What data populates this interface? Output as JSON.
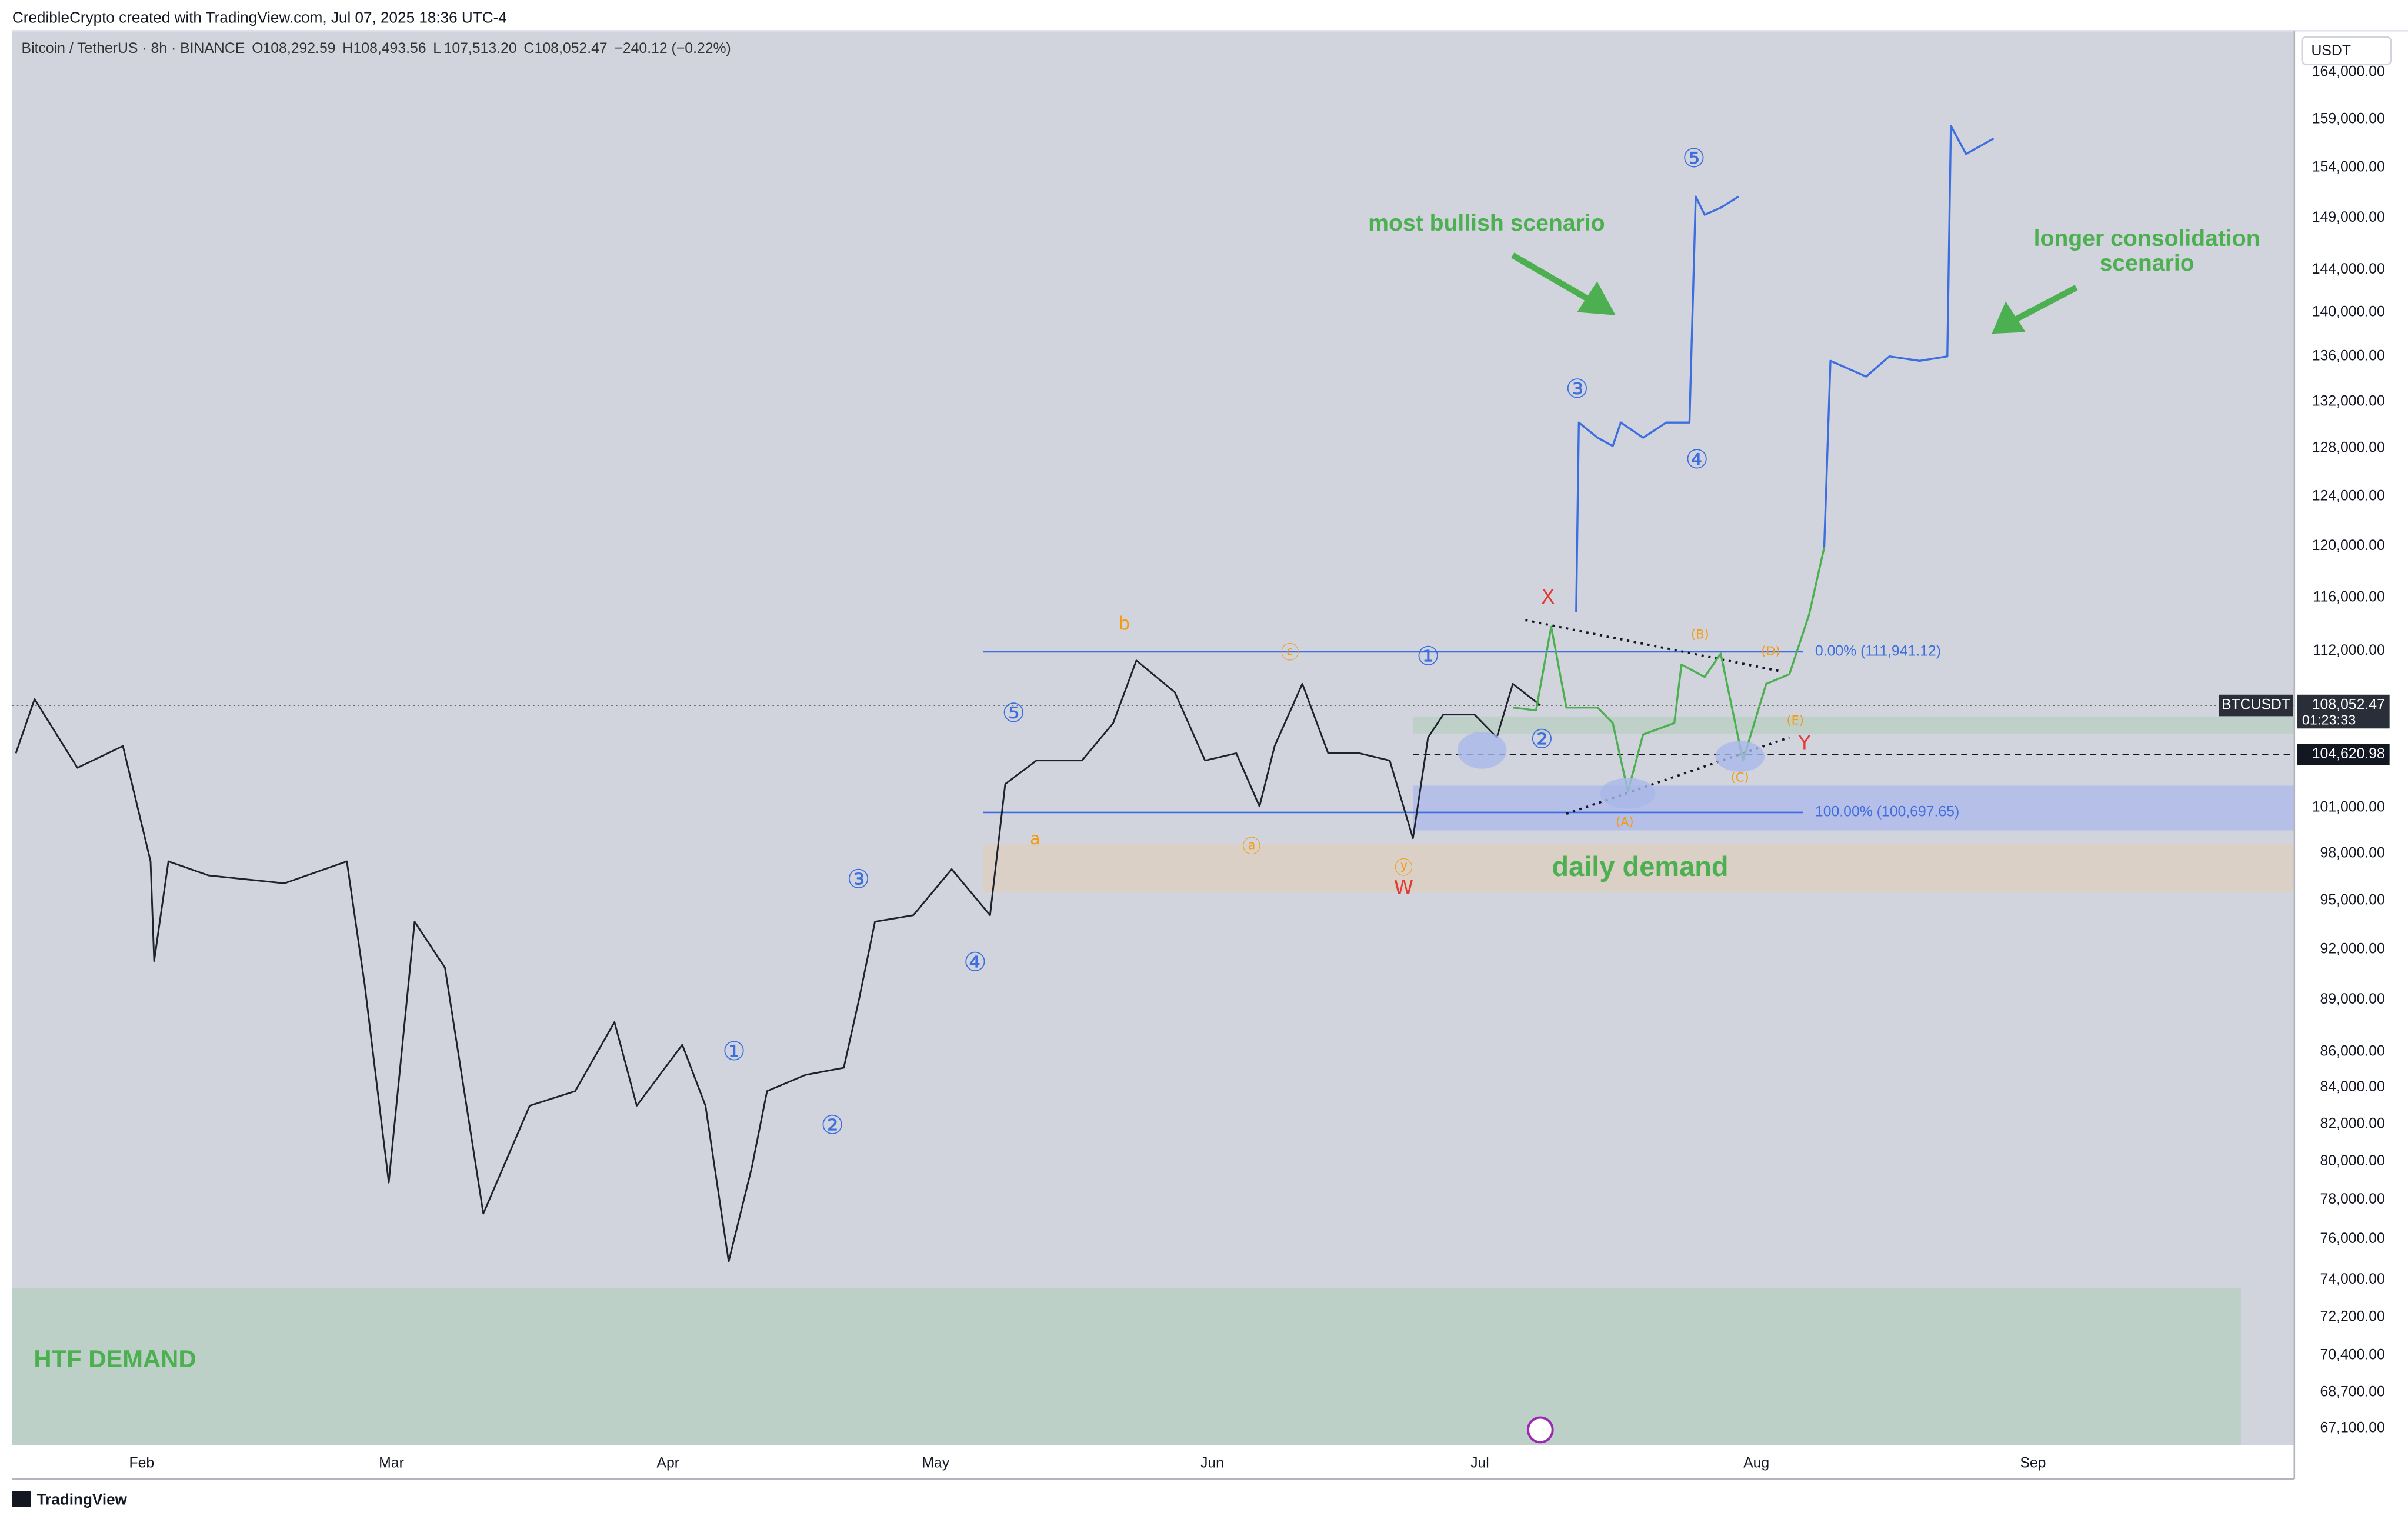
{
  "header": "CredibleCrypto created with TradingView.com, Jul 07, 2025 18:36 UTC-4",
  "footer": "TradingView",
  "chart_data": {
    "type": "line",
    "title": "Bitcoin / TetherUS · 8h · BINANCE",
    "ohlc": [
      {
        "label": "O",
        "value": "108,292.59"
      },
      {
        "label": "H",
        "value": "108,493.56"
      },
      {
        "label": "L",
        "value": "107,513.20"
      },
      {
        "label": "C",
        "value": "108,052.47"
      }
    ],
    "change": "−240.12 (−0.22%)",
    "currency": "USDT",
    "symbol": "BTCUSDT",
    "countdown": "01:23:33",
    "log": true,
    "xlim": [
      17.5,
      273.3
    ],
    "xticks": [
      {
        "value": 32,
        "label": "Feb"
      },
      {
        "value": 60,
        "label": "Mar"
      },
      {
        "value": 91,
        "label": "Apr"
      },
      {
        "value": 121,
        "label": "May"
      },
      {
        "value": 152,
        "label": "Jun"
      },
      {
        "value": 182,
        "label": "Jul"
      },
      {
        "value": 213,
        "label": "Aug"
      },
      {
        "value": 244,
        "label": "Sep"
      }
    ],
    "ylim": [
      66360,
      168550
    ],
    "yticks": [
      {
        "value": 164000,
        "label": "164,000.00"
      },
      {
        "value": 159000,
        "label": "159,000.00"
      },
      {
        "value": 154000,
        "label": "154,000.00"
      },
      {
        "value": 149000,
        "label": "149,000.00"
      },
      {
        "value": 144000,
        "label": "144,000.00"
      },
      {
        "value": 140000,
        "label": "140,000.00"
      },
      {
        "value": 136000,
        "label": "136,000.00"
      },
      {
        "value": 132000,
        "label": "132,000.00"
      },
      {
        "value": 128000,
        "label": "128,000.00"
      },
      {
        "value": 124000,
        "label": "124,000.00"
      },
      {
        "value": 120000,
        "label": "120,000.00"
      },
      {
        "value": 116000,
        "label": "116,000.00"
      },
      {
        "value": 112000,
        "label": "112,000.00"
      },
      {
        "value": 101000,
        "label": "101,000.00"
      },
      {
        "value": 98000,
        "label": "98,000.00"
      },
      {
        "value": 95000,
        "label": "95,000.00"
      },
      {
        "value": 92000,
        "label": "92,000.00"
      },
      {
        "value": 89000,
        "label": "89,000.00"
      },
      {
        "value": 86000,
        "label": "86,000.00"
      },
      {
        "value": 84000,
        "label": "84,000.00"
      },
      {
        "value": 82000,
        "label": "82,000.00"
      },
      {
        "value": 80000,
        "label": "80,000.00"
      },
      {
        "value": 78000,
        "label": "78,000.00"
      },
      {
        "value": 76000,
        "label": "76,000.00"
      },
      {
        "value": 74000,
        "label": "74,000.00"
      },
      {
        "value": 72200,
        "label": "72,200.00"
      },
      {
        "value": 70400,
        "label": "70,400.00"
      },
      {
        "value": 68700,
        "label": "68,700.00"
      },
      {
        "value": 67100,
        "label": "67,100.00"
      }
    ],
    "last_price": {
      "value": 108052.47,
      "label": "108,052.47"
    },
    "marked_price": {
      "value": 104620.98,
      "label": "104,620.98"
    },
    "series": [
      {
        "color": "#1e222d",
        "x": [
          17.9,
          20,
          24.8,
          29.9,
          33,
          33.4,
          35,
          39.5,
          48,
          55,
          57,
          59.7,
          62.6,
          66,
          70.3,
          75.5,
          80.6,
          85,
          87.5,
          92.6,
          95.2,
          97.8,
          100.4,
          102.1,
          106.4,
          110.7,
          112.4,
          114.2,
          118.5,
          122.8,
          127.1,
          128.8,
          132.3,
          137.4,
          140.9,
          143.5,
          147.8,
          151.2,
          154.7,
          157.3,
          159,
          162.1,
          165,
          168.5,
          171.9,
          174.5,
          176.2,
          177.9,
          181.4,
          183.9,
          185.7,
          188.8
        ],
        "values": [
          104700,
          108500,
          103700,
          105200,
          97500,
          91300,
          97500,
          96600,
          96100,
          97500,
          89900,
          78900,
          93700,
          90900,
          77300,
          83000,
          83800,
          87700,
          83000,
          86400,
          83000,
          74900,
          79700,
          83800,
          84700,
          85100,
          89000,
          93700,
          94100,
          97000,
          94100,
          102600,
          104200,
          104200,
          106800,
          111300,
          109000,
          104200,
          104700,
          101100,
          105200,
          109600,
          104700,
          104700,
          104200,
          99000,
          105800,
          107400,
          107400,
          105800,
          109600,
          108052.47
        ]
      },
      {
        "color": "#3d6ee0",
        "x": [
          192.8,
          193.1,
          195.2,
          196.9,
          197.8,
          200.3,
          202.9,
          205.5,
          206.2,
          207.2,
          209,
          211
        ],
        "values": [
          114900,
          130200,
          128900,
          128200,
          130200,
          128900,
          130200,
          130200,
          151100,
          149300,
          150000,
          151100
        ]
      },
      {
        "color": "#3d6ee0",
        "x": [
          220.6,
          221.3,
          225.3,
          227.9,
          231.3,
          234.4,
          234.8,
          236.5,
          239.6
        ],
        "values": [
          119900,
          135600,
          134200,
          136000,
          135600,
          136000,
          158300,
          155400,
          157000
        ]
      },
      {
        "color": "#4caf50",
        "x": [
          185.7,
          188.3,
          190,
          191.7,
          195.2,
          196.9,
          198.6,
          200.3,
          203.8,
          204.6,
          207.2,
          209,
          211.5,
          214.1,
          216.7,
          218.9,
          220.6
        ],
        "values": [
          107900,
          107700,
          113800,
          107900,
          107900,
          106800,
          102100,
          106000,
          106800,
          111000,
          110100,
          111800,
          104200,
          109600,
          110300,
          114700,
          119900
        ]
      }
    ],
    "zones": [
      {
        "from": 17.5,
        "to": 267.3,
        "low": 66360,
        "high": 73590,
        "color": "#b9cfc4"
      },
      {
        "from": 126.3,
        "to": 273.3,
        "low": 95560,
        "high": 98610,
        "color": "#dacfc2"
      },
      {
        "from": 174.5,
        "to": 273.3,
        "low": 99510,
        "high": 102490,
        "color": "#b3bde8"
      },
      {
        "from": 174.5,
        "to": 273.3,
        "low": 106070,
        "high": 107270,
        "color": "#bccfc6"
      }
    ],
    "levels": [
      {
        "value": 111941.12,
        "label": "0.00% (111,941.12)",
        "from": 126.3,
        "to": 218.2,
        "color": "#3d6ee0"
      },
      {
        "value": 100697.65,
        "label": "100.00% (100,697.65)",
        "from": 126.3,
        "to": 218.2,
        "color": "#3d6ee0"
      }
    ],
    "trendlines": [
      {
        "x": [
          187.1,
          215.8
        ],
        "values": [
          114300,
          110500
        ]
      },
      {
        "x": [
          191.7,
          216.7
        ],
        "values": [
          100600,
          105800
        ]
      }
    ],
    "annotations": [
      {
        "text": "most bullish scenario",
        "color": "#4caf50"
      },
      {
        "text": "longer consolidation",
        "color": "#4caf50"
      },
      {
        "text": "scenario",
        "color": "#4caf50"
      },
      {
        "text": "daily demand",
        "color": "#4caf50"
      },
      {
        "text": "HTF DEMAND",
        "color": "#4caf50"
      }
    ],
    "wave_labels": [
      {
        "text": "⑤",
        "color": "#3d6ee0"
      },
      {
        "text": "③",
        "color": "#3d6ee0"
      },
      {
        "text": "④",
        "color": "#3d6ee0"
      },
      {
        "text": "①",
        "color": "#3d6ee0"
      },
      {
        "text": "②",
        "color": "#3d6ee0"
      },
      {
        "text": "⑤",
        "color": "#3d6ee0"
      },
      {
        "text": "③",
        "color": "#3d6ee0"
      },
      {
        "text": "④",
        "color": "#3d6ee0"
      },
      {
        "text": "①",
        "color": "#3d6ee0"
      },
      {
        "text": "②",
        "color": "#3d6ee0"
      },
      {
        "text": "X",
        "color": "#e53935"
      },
      {
        "text": "Y",
        "color": "#e53935"
      },
      {
        "text": "W",
        "color": "#e53935"
      },
      {
        "text": "b",
        "color": "#f39c12"
      },
      {
        "text": "a",
        "color": "#f39c12"
      },
      {
        "text": "(B)",
        "color": "#f39c12"
      },
      {
        "text": "(D)",
        "color": "#f39c12"
      },
      {
        "text": "(E)",
        "color": "#f39c12"
      },
      {
        "text": "(A)",
        "color": "#f39c12"
      },
      {
        "text": "(C)",
        "color": "#f39c12"
      },
      {
        "text": "ⓒ",
        "color": "#f39c12"
      },
      {
        "text": "ⓐ",
        "color": "#f39c12"
      },
      {
        "text": "ⓨ",
        "color": "#f39c12"
      }
    ]
  }
}
